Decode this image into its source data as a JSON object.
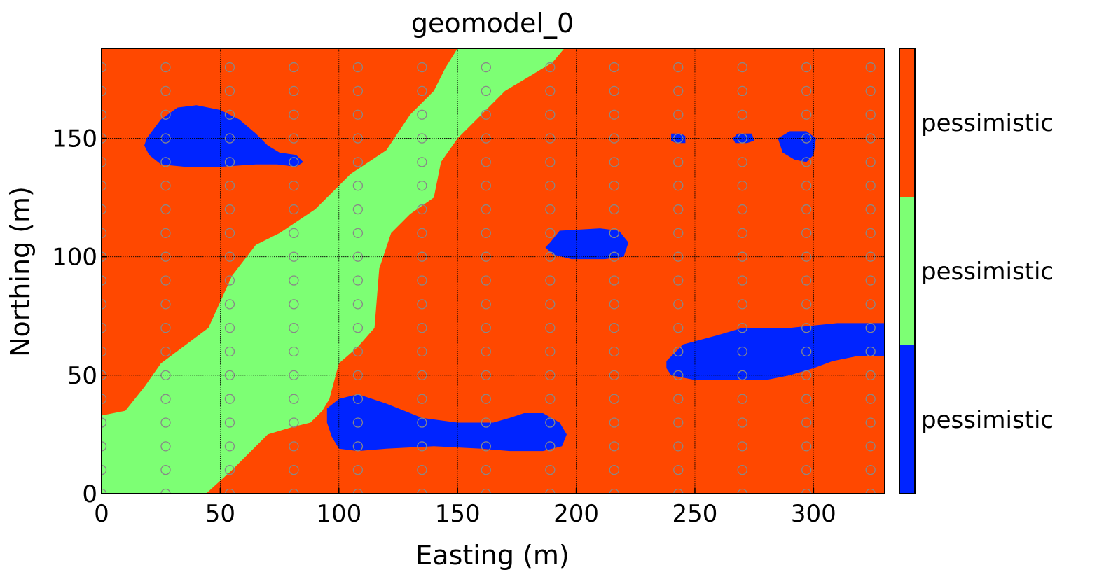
{
  "chart_data": {
    "type": "heatmap",
    "title": "geomodel_0",
    "xlabel": "Easting (m)",
    "ylabel": "Northing (m)",
    "xlim": [
      0,
      330
    ],
    "ylim": [
      0,
      188
    ],
    "xticks": [
      0,
      50,
      100,
      150,
      200,
      250,
      300
    ],
    "yticks": [
      0,
      50,
      100,
      150
    ],
    "grid": true,
    "colors": {
      "background_facies": "#ff4800",
      "channel_facies": "#7dff74",
      "body_facies": "#0024ff",
      "marker": "#888888",
      "grid": "#000000"
    },
    "colorbar": {
      "position": "right",
      "entries": [
        {
          "label": "pessimistic",
          "color": "#ff4800"
        },
        {
          "label": "pessimistic",
          "color": "#7dff74"
        },
        {
          "label": "pessimistic",
          "color": "#0024ff"
        }
      ]
    },
    "regions": [
      {
        "facies": "channel",
        "color": "#7dff74",
        "outline": [
          [
            0,
            0
          ],
          [
            44,
            0
          ],
          [
            55,
            10
          ],
          [
            70,
            25
          ],
          [
            80,
            28
          ],
          [
            88,
            30
          ],
          [
            93,
            35
          ],
          [
            96,
            40
          ],
          [
            100,
            55
          ],
          [
            108,
            62
          ],
          [
            115,
            70
          ],
          [
            117,
            95
          ],
          [
            122,
            110
          ],
          [
            130,
            118
          ],
          [
            140,
            125
          ],
          [
            143,
            140
          ],
          [
            150,
            150
          ],
          [
            160,
            160
          ],
          [
            170,
            170
          ],
          [
            180,
            176
          ],
          [
            190,
            182
          ],
          [
            195,
            188
          ],
          [
            150,
            188
          ],
          [
            145,
            180
          ],
          [
            140,
            170
          ],
          [
            130,
            160
          ],
          [
            120,
            145
          ],
          [
            105,
            135
          ],
          [
            98,
            128
          ],
          [
            90,
            120
          ],
          [
            75,
            110
          ],
          [
            65,
            105
          ],
          [
            55,
            92
          ],
          [
            45,
            70
          ],
          [
            25,
            55
          ],
          [
            18,
            45
          ],
          [
            10,
            35
          ],
          [
            0,
            33
          ]
        ]
      },
      {
        "facies": "body",
        "color": "#0024ff",
        "outline": [
          [
            19,
            150
          ],
          [
            25,
            158
          ],
          [
            32,
            163
          ],
          [
            40,
            164
          ],
          [
            50,
            162
          ],
          [
            58,
            158
          ],
          [
            65,
            152
          ],
          [
            70,
            147
          ],
          [
            75,
            144
          ],
          [
            82,
            143
          ],
          [
            85,
            140
          ],
          [
            82,
            138
          ],
          [
            74,
            139
          ],
          [
            65,
            139
          ],
          [
            50,
            138
          ],
          [
            35,
            138
          ],
          [
            25,
            139
          ],
          [
            20,
            143
          ],
          [
            18,
            147
          ]
        ]
      },
      {
        "facies": "body",
        "color": "#0024ff",
        "outline": [
          [
            189,
            106
          ],
          [
            193,
            111
          ],
          [
            210,
            112
          ],
          [
            218,
            111
          ],
          [
            222,
            106
          ],
          [
            220,
            100
          ],
          [
            212,
            99
          ],
          [
            198,
            99
          ],
          [
            190,
            101
          ],
          [
            187,
            104
          ]
        ]
      },
      {
        "facies": "body",
        "color": "#0024ff",
        "outline": [
          [
            95,
            36
          ],
          [
            100,
            40
          ],
          [
            108,
            42
          ],
          [
            120,
            38
          ],
          [
            135,
            32
          ],
          [
            150,
            30
          ],
          [
            165,
            30
          ],
          [
            172,
            32
          ],
          [
            178,
            34
          ],
          [
            186,
            34
          ],
          [
            193,
            30
          ],
          [
            196,
            25
          ],
          [
            194,
            20
          ],
          [
            186,
            18
          ],
          [
            172,
            18
          ],
          [
            160,
            19
          ],
          [
            140,
            20
          ],
          [
            120,
            19
          ],
          [
            108,
            18
          ],
          [
            100,
            19
          ],
          [
            97,
            24
          ],
          [
            95,
            30
          ]
        ]
      },
      {
        "facies": "body",
        "color": "#0024ff",
        "outline": [
          [
            238,
            56
          ],
          [
            245,
            63
          ],
          [
            260,
            67
          ],
          [
            270,
            70
          ],
          [
            290,
            70
          ],
          [
            310,
            72
          ],
          [
            330,
            72
          ],
          [
            330,
            58
          ],
          [
            318,
            58
          ],
          [
            308,
            56
          ],
          [
            300,
            53
          ],
          [
            290,
            50
          ],
          [
            280,
            48
          ],
          [
            265,
            48
          ],
          [
            250,
            48
          ],
          [
            240,
            50
          ],
          [
            238,
            53
          ]
        ]
      },
      {
        "facies": "body",
        "color": "#0024ff",
        "outline": [
          [
            240,
            149
          ],
          [
            240,
            152
          ],
          [
            244,
            152
          ],
          [
            246,
            151
          ],
          [
            246,
            148
          ],
          [
            242,
            148
          ]
        ]
      },
      {
        "facies": "body",
        "color": "#0024ff",
        "outline": [
          [
            266,
            150
          ],
          [
            268,
            152
          ],
          [
            274,
            152
          ],
          [
            275,
            149
          ],
          [
            272,
            148
          ],
          [
            267,
            148
          ]
        ]
      },
      {
        "facies": "body",
        "color": "#0024ff",
        "outline": [
          [
            285,
            150
          ],
          [
            290,
            153
          ],
          [
            297,
            153
          ],
          [
            301,
            150
          ],
          [
            300,
            143
          ],
          [
            297,
            140
          ],
          [
            292,
            141
          ],
          [
            287,
            144
          ]
        ]
      }
    ],
    "markers": {
      "x": [
        0,
        27,
        54,
        81,
        108,
        135,
        162,
        189,
        216,
        243,
        270,
        297,
        324
      ],
      "y": [
        0,
        10,
        20,
        30,
        40,
        50,
        60,
        70,
        80,
        90,
        100,
        110,
        120,
        130,
        140,
        150,
        160,
        170,
        180
      ]
    }
  }
}
